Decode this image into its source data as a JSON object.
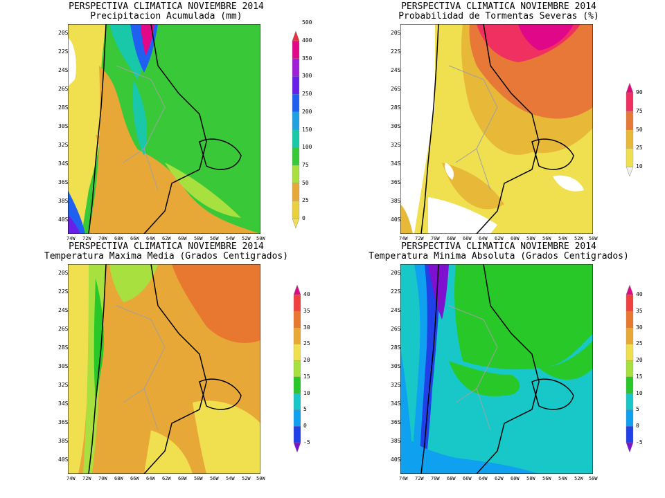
{
  "panels": [
    {
      "id": "precip",
      "title1": "PERSPECTIVA CLIMATICA NOVIEMBRE 2014",
      "title2": "Precipitacion Acumulada (mm)",
      "colorbar": {
        "labels": [
          "0",
          "25",
          "50",
          "75",
          "100",
          "150",
          "200",
          "250",
          "300",
          "350",
          "400",
          "500"
        ],
        "colors": [
          "#f0e050",
          "#e8d040",
          "#e8a838",
          "#a8e040",
          "#38c838",
          "#18c8a8",
          "#20a0e0",
          "#2060f0",
          "#6820e8",
          "#a020d8",
          "#e00888",
          "#e83040"
        ]
      }
    },
    {
      "id": "storm",
      "title1": "PERSPECTIVA CLIMATICA NOVIEMBRE 2014",
      "title2": "Probabilidad de Tormentas Severas (%)",
      "colorbar": {
        "labels": [
          "10",
          "25",
          "50",
          "75",
          "90"
        ],
        "colors": [
          "#f0f0f0",
          "#f0e050",
          "#e8b838",
          "#e87838",
          "#f03060",
          "#e00878"
        ]
      }
    },
    {
      "id": "tmax",
      "title1": "PERSPECTIVA CLIMATICA NOVIEMBRE 2014",
      "title2": "Temperatura Maxima Media (Grados Centigrados)",
      "colorbar": {
        "labels": [
          "-5",
          "0",
          "5",
          "10",
          "15",
          "20",
          "25",
          "30",
          "35",
          "40"
        ],
        "colors": [
          "#8010d0",
          "#2040e8",
          "#10a0f0",
          "#18c8c8",
          "#28c828",
          "#a8e040",
          "#f0e050",
          "#e8a838",
          "#e87830",
          "#f04040",
          "#e00888"
        ]
      }
    },
    {
      "id": "tmin",
      "title1": "PERSPECTIVA CLIMATICA NOVIEMBRE 2014",
      "title2": "Temperatura Minima Absoluta (Grados Centigrados)",
      "colorbar": {
        "labels": [
          "-5",
          "0",
          "5",
          "10",
          "15",
          "20",
          "25",
          "30",
          "35",
          "40"
        ],
        "colors": [
          "#8010d0",
          "#2040e8",
          "#10a0f0",
          "#18c8c8",
          "#28c828",
          "#a8e040",
          "#f0e050",
          "#e8a838",
          "#e87830",
          "#f04040",
          "#e00888"
        ]
      }
    }
  ],
  "lat_ticks": [
    "20S",
    "22S",
    "24S",
    "26S",
    "28S",
    "30S",
    "32S",
    "34S",
    "36S",
    "38S",
    "40S"
  ],
  "lon_ticks": [
    "74W",
    "72W",
    "70W",
    "68W",
    "66W",
    "64W",
    "62W",
    "60W",
    "58W",
    "56W",
    "54W",
    "52W",
    "50W"
  ]
}
